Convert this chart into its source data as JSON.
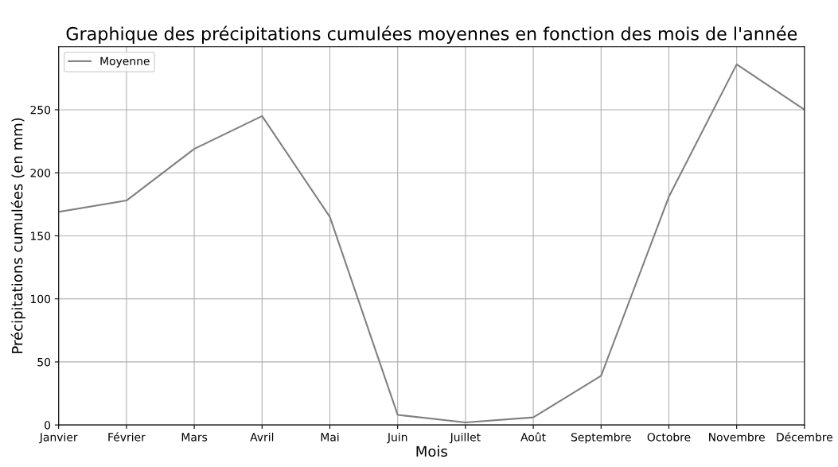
{
  "chart_data": {
    "type": "line",
    "title": "Graphique des précipitations cumulées moyennes en fonction des mois de l'année",
    "xlabel": "Mois",
    "ylabel": "Précipitations cumulées (en mm)",
    "categories": [
      "Janvier",
      "Février",
      "Mars",
      "Avril",
      "Mai",
      "Juin",
      "Juillet",
      "Août",
      "Septembre",
      "Octobre",
      "Novembre",
      "Décembre"
    ],
    "series": [
      {
        "name": "Moyenne",
        "color": "#808080",
        "values": [
          169,
          178,
          219,
          245,
          165,
          8,
          2,
          6,
          39,
          181,
          286,
          250
        ]
      }
    ],
    "ylim": [
      0,
      300
    ],
    "yticks": [
      0,
      50,
      100,
      150,
      200,
      250
    ],
    "grid": true,
    "legend": "top left",
    "marker": "none",
    "line_style": "solid"
  }
}
